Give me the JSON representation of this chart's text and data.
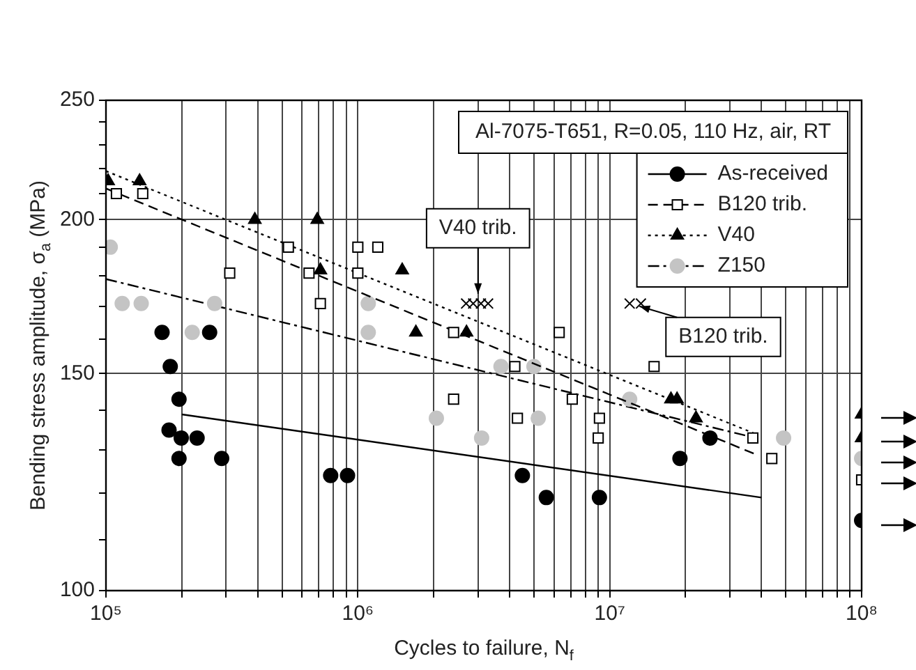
{
  "chart_data": {
    "type": "scatter",
    "title": "Al-7075-T651, R=0.05, 110 Hz, air, RT",
    "xlabel": "Cycles to failure, N$_{f}$",
    "ylabel": "Bending stress amplitude, σ$_{a}$ (MPa)",
    "log": "xy",
    "grid": true,
    "legend": "top right",
    "xlim": [
      100000,
      100000000
    ],
    "ylim": [
      100,
      250
    ],
    "xticks": [
      {
        "value": 100000,
        "label": "10⁵"
      },
      {
        "value": 200000,
        "label": null
      },
      {
        "value": 300000,
        "label": null
      },
      {
        "value": 400000,
        "label": null
      },
      {
        "value": 500000,
        "label": null
      },
      {
        "value": 600000,
        "label": null
      },
      {
        "value": 700000,
        "label": null
      },
      {
        "value": 800000,
        "label": null
      },
      {
        "value": 900000,
        "label": null
      },
      {
        "value": 1000000,
        "label": "10⁶"
      },
      {
        "value": 2000000,
        "label": null
      },
      {
        "value": 3000000,
        "label": null
      },
      {
        "value": 4000000,
        "label": null
      },
      {
        "value": 5000000,
        "label": null
      },
      {
        "value": 6000000,
        "label": null
      },
      {
        "value": 7000000,
        "label": null
      },
      {
        "value": 8000000,
        "label": null
      },
      {
        "value": 9000000,
        "label": null
      },
      {
        "value": 10000000,
        "label": "10⁷"
      },
      {
        "value": 20000000,
        "label": null
      },
      {
        "value": 30000000,
        "label": null
      },
      {
        "value": 40000000,
        "label": null
      },
      {
        "value": 50000000,
        "label": null
      },
      {
        "value": 60000000,
        "label": null
      },
      {
        "value": 70000000,
        "label": null
      },
      {
        "value": 80000000,
        "label": null
      },
      {
        "value": 90000000,
        "label": null
      },
      {
        "value": 100000000,
        "label": "10⁸"
      }
    ],
    "yticks": [
      100,
      {
        "value": 110,
        "label": null
      },
      {
        "value": 120,
        "label": null
      },
      {
        "value": 130,
        "label": null
      },
      {
        "value": 140,
        "label": null
      },
      150,
      {
        "value": 160,
        "label": null
      },
      {
        "value": 170,
        "label": null
      },
      {
        "value": 180,
        "label": null
      },
      {
        "value": 190,
        "label": null
      },
      200,
      {
        "value": 210,
        "label": null
      },
      {
        "value": 220,
        "label": null
      },
      {
        "value": 230,
        "label": null
      },
      {
        "value": 240,
        "label": null
      },
      250
    ],
    "annotations": [
      {
        "text": "V40 trib.",
        "x": 3000000,
        "y": 171
      },
      {
        "text": "B120 trib.",
        "x": 12000000,
        "y": 171
      }
    ],
    "series": [
      {
        "name": "As-received",
        "marker": "circle",
        "color": "#000000",
        "x": [
          167000,
          258000,
          180000,
          195000,
          178000,
          199000,
          230000,
          195000,
          288000,
          780000,
          910000,
          4500000,
          5600000,
          9100000,
          19000000,
          25000000,
          100000000
        ],
        "values": [
          162,
          162,
          152,
          143,
          135,
          133,
          133,
          128,
          128,
          124,
          124,
          124,
          119,
          119,
          128,
          133,
          114
        ]
      },
      {
        "type": "line",
        "line_style": "solid",
        "color": "#000000",
        "x": [
          200000,
          40000000
        ],
        "values": [
          139,
          119
        ]
      },
      {
        "name": "B120 trib.",
        "marker": "square",
        "color": "#000000",
        "x": [
          110000,
          140000,
          310000,
          530000,
          640000,
          1000000,
          1200000,
          1000000,
          710000,
          2400000,
          2400000,
          6300000,
          4200000,
          15000000,
          7100000,
          4300000,
          9100000,
          9000000,
          37000000,
          44000000,
          100000000
        ],
        "values": [
          210,
          210,
          181,
          190,
          181,
          190,
          190,
          181,
          171,
          162,
          143,
          162,
          152,
          152,
          143,
          138,
          138,
          133,
          133,
          128,
          123
        ]
      },
      {
        "type": "line",
        "line_style": "dashed",
        "color": "#000000",
        "x": [
          100000,
          38000000
        ],
        "values": [
          212,
          129
        ]
      },
      {
        "name": "V40",
        "marker": "triangle",
        "color": "#000000",
        "x": [
          102000,
          136000,
          390000,
          690000,
          710000,
          1500000,
          1700000,
          2700000,
          17500000,
          18500000,
          22000000,
          100000000,
          100000000
        ],
        "values": [
          215,
          215,
          200,
          200,
          182,
          182,
          162,
          162,
          143,
          143,
          138,
          139,
          133
        ]
      },
      {
        "type": "line",
        "line_style": "dotted",
        "color": "#000000",
        "x": [
          100000,
          38000000
        ],
        "values": [
          219,
          134
        ]
      },
      {
        "name": "Z150",
        "marker": "circle",
        "color": "#c4c4c4",
        "x": [
          104000,
          116000,
          138000,
          270000,
          220000,
          1100000,
          1100000,
          2050000,
          3100000,
          3700000,
          5000000,
          12000000,
          5200000,
          49000000,
          100000000
        ],
        "values": [
          190,
          171,
          171,
          171,
          162,
          171,
          162,
          138,
          133,
          152,
          152,
          143,
          138,
          133,
          128
        ]
      },
      {
        "type": "line",
        "line_style": "dashdot",
        "color": "#000000",
        "x": [
          100000,
          38000000
        ],
        "values": [
          179,
          133
        ]
      },
      {
        "marker": "cross",
        "color": "#000000",
        "x": [
          2690000,
          2870000,
          3080000,
          3290000
        ],
        "values": [
          171,
          171,
          171,
          171
        ]
      },
      {
        "marker": "cross",
        "color": "#000000",
        "x": [
          12000000,
          13300000
        ],
        "values": [
          171,
          171
        ]
      }
    ]
  }
}
